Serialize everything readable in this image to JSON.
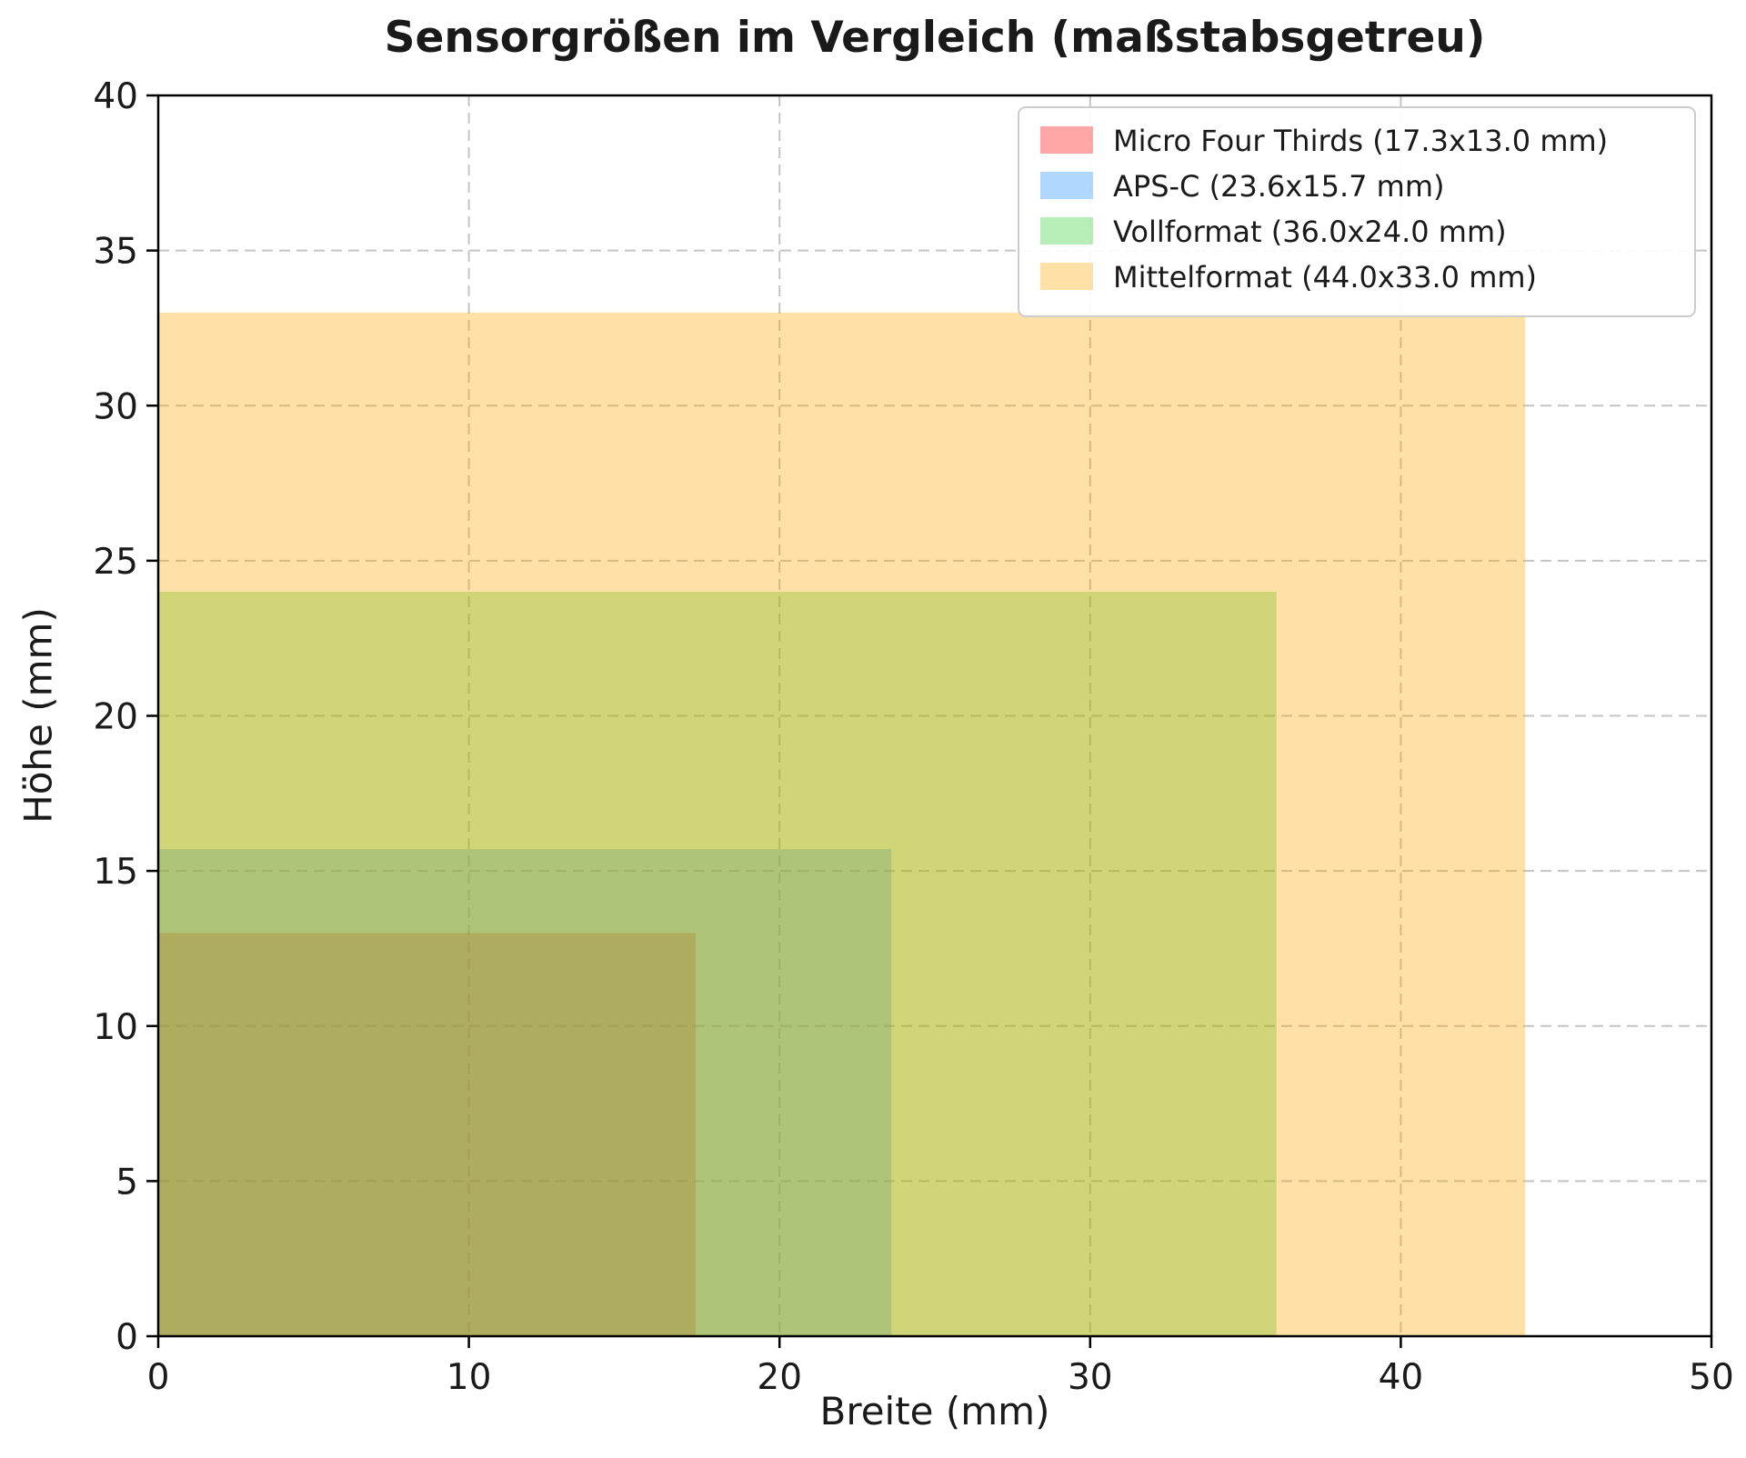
{
  "chart_data": {
    "type": "area",
    "title": "Sensorgrößen im Vergleich (maßstabsgetreu)",
    "xlabel": "Breite (mm)",
    "ylabel": "Höhe (mm)",
    "xlim": [
      0,
      50
    ],
    "ylim": [
      0,
      40
    ],
    "xticks": [
      0,
      10,
      20,
      30,
      40,
      50
    ],
    "yticks": [
      0,
      5,
      10,
      15,
      20,
      25,
      30,
      35,
      40
    ],
    "grid": true,
    "grid_style": "dashed",
    "legend_position": "upper right",
    "series": [
      {
        "name": "Micro Four Thirds (17.3x13.0 mm)",
        "width_mm": 17.3,
        "height_mm": 13.0,
        "color": "#ff0000",
        "alpha": 0.35
      },
      {
        "name": "APS-C (23.6x15.7 mm)",
        "width_mm": 23.6,
        "height_mm": 15.7,
        "color": "#1e90ff",
        "alpha": 0.35
      },
      {
        "name": "Vollformat (36.0x24.0 mm)",
        "width_mm": 36.0,
        "height_mm": 24.0,
        "color": "#32cd32",
        "alpha": 0.35
      },
      {
        "name": "Mittelformat (44.0x33.0 mm)",
        "width_mm": 44.0,
        "height_mm": 33.0,
        "color": "#ffa500",
        "alpha": 0.35
      }
    ]
  },
  "style": {
    "background": "#ffffff",
    "axis_color": "#000000",
    "grid_color": "#c4c4c4",
    "text_color": "#1a1a1a",
    "legend_border": "#cccccc",
    "legend_background": "#ffffff"
  }
}
